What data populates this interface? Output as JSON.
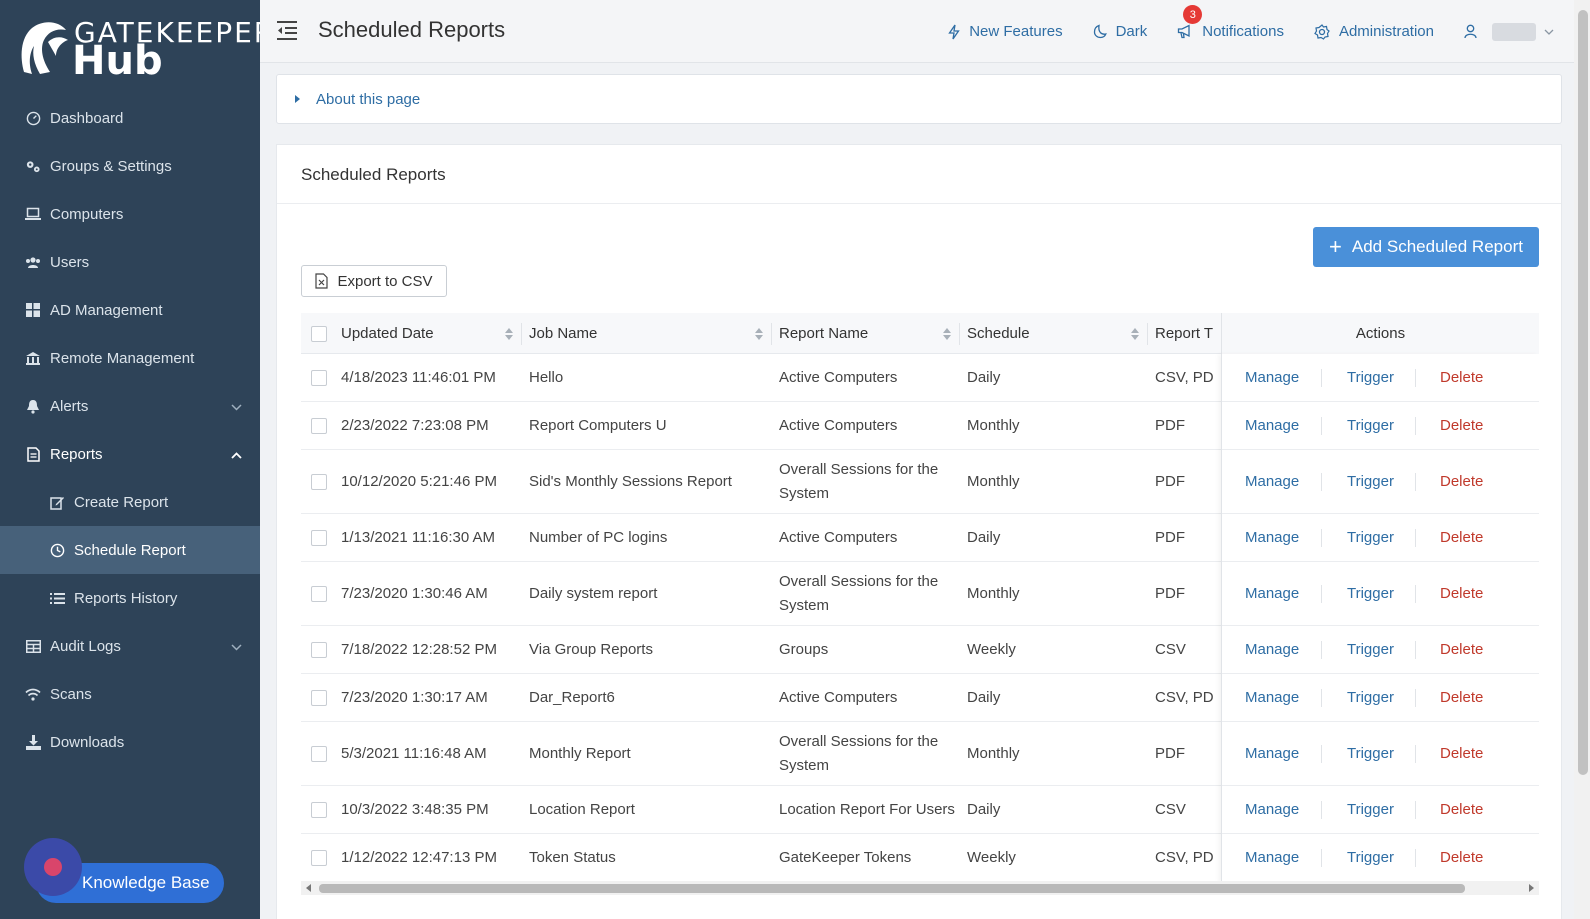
{
  "brand": {
    "word1": "GATEKEEPER",
    "word2": "Hub"
  },
  "sidebar": {
    "items": [
      {
        "label": "Dashboard",
        "icon": "dashboard-icon"
      },
      {
        "label": "Groups & Settings",
        "icon": "gears-icon"
      },
      {
        "label": "Computers",
        "icon": "laptop-icon"
      },
      {
        "label": "Users",
        "icon": "users-icon"
      },
      {
        "label": "AD Management",
        "icon": "windows-icon"
      },
      {
        "label": "Remote Management",
        "icon": "building-icon"
      },
      {
        "label": "Alerts",
        "icon": "bell-icon"
      },
      {
        "label": "Reports",
        "icon": "document-icon"
      },
      {
        "label": "Create Report",
        "icon": "edit-icon"
      },
      {
        "label": "Schedule Report",
        "icon": "clock-icon"
      },
      {
        "label": "Reports History",
        "icon": "list-icon"
      },
      {
        "label": "Audit Logs",
        "icon": "table-icon"
      },
      {
        "label": "Scans",
        "icon": "wifi-icon"
      },
      {
        "label": "Downloads",
        "icon": "download-icon"
      }
    ],
    "knowledge_base": "Knowledge Base"
  },
  "header": {
    "title": "Scheduled Reports",
    "new_features": "New Features",
    "dark": "Dark",
    "notifications": "Notifications",
    "notification_count": "3",
    "administration": "Administration"
  },
  "about": {
    "label": "About this page"
  },
  "card": {
    "title": "Scheduled Reports",
    "add_button": "Add Scheduled Report",
    "export_button": "Export to CSV"
  },
  "table": {
    "columns": [
      "Updated Date",
      "Job Name",
      "Report Name",
      "Schedule",
      "Report T",
      "Actions"
    ],
    "action_labels": {
      "manage": "Manage",
      "trigger": "Trigger",
      "delete": "Delete"
    },
    "rows": [
      {
        "updated": "4/18/2023 11:46:01 PM",
        "job": "Hello",
        "report": "Active Computers",
        "schedule": "Daily",
        "type": "CSV, PD"
      },
      {
        "updated": "2/23/2022 7:23:08 PM",
        "job": "Report Computers U",
        "report": "Active Computers",
        "schedule": "Monthly",
        "type": "PDF"
      },
      {
        "updated": "10/12/2020 5:21:46 PM",
        "job": "Sid's Monthly Sessions Report",
        "report": "Overall Sessions for the System",
        "schedule": "Monthly",
        "type": "PDF"
      },
      {
        "updated": "1/13/2021 11:16:30 AM",
        "job": "Number of PC logins",
        "report": "Active Computers",
        "schedule": "Daily",
        "type": "PDF"
      },
      {
        "updated": "7/23/2020 1:30:46 AM",
        "job": "Daily system report",
        "report": "Overall Sessions for the System",
        "schedule": "Monthly",
        "type": "PDF"
      },
      {
        "updated": "7/18/2022 12:28:52 PM",
        "job": "Via Group Reports",
        "report": "Groups",
        "schedule": "Weekly",
        "type": "CSV"
      },
      {
        "updated": "7/23/2020 1:30:17 AM",
        "job": "Dar_Report6",
        "report": "Active Computers",
        "schedule": "Daily",
        "type": "CSV, PD"
      },
      {
        "updated": "5/3/2021 11:16:48 AM",
        "job": "Monthly Report",
        "report": "Overall Sessions for the System",
        "schedule": "Monthly",
        "type": "PDF"
      },
      {
        "updated": "10/3/2022 3:48:35 PM",
        "job": "Location Report",
        "report": "Location Report For Users",
        "schedule": "Daily",
        "type": "CSV"
      },
      {
        "updated": "1/12/2022 12:47:13 PM",
        "job": "Token Status",
        "report": "GateKeeper Tokens",
        "schedule": "Weekly",
        "type": "CSV, PD"
      }
    ]
  },
  "colors": {
    "sidebar_bg": "#2e4358",
    "sidebar_active": "#47617a",
    "link": "#2e6da4",
    "primary_button": "#4a90d9",
    "danger": "#c0392b",
    "badge": "#e53935"
  }
}
